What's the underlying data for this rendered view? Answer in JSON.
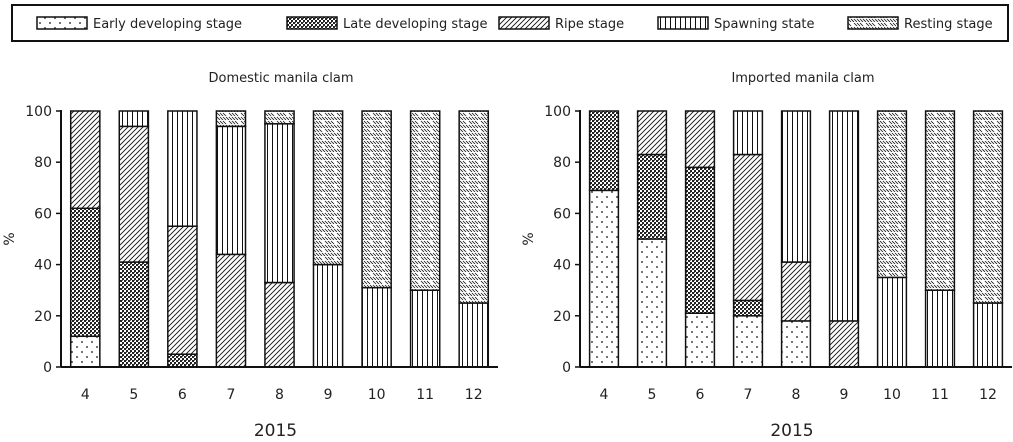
{
  "legend": {
    "items": [
      {
        "label": "Early developing stage",
        "pattern": "dots"
      },
      {
        "label": "Late developing stage",
        "pattern": "crosshatch"
      },
      {
        "label": "Ripe stage",
        "pattern": "diag-right"
      },
      {
        "label": "Spawning state",
        "pattern": "vertical"
      },
      {
        "label": "Resting stage",
        "pattern": "diag-left"
      }
    ]
  },
  "chart_data": [
    {
      "type": "bar",
      "stacked": true,
      "title": "Domestic manila clam",
      "xlabel": "2015",
      "ylabel": "%",
      "ylim": [
        0,
        100
      ],
      "yticks": [
        0,
        20,
        40,
        60,
        80,
        100
      ],
      "categories": [
        "4",
        "5",
        "6",
        "7",
        "8",
        "9",
        "10",
        "11",
        "12"
      ],
      "series": [
        {
          "name": "Early developing stage",
          "values": [
            12,
            0,
            0,
            0,
            0,
            0,
            0,
            0,
            0
          ]
        },
        {
          "name": "Late developing stage",
          "values": [
            50,
            41,
            5,
            0,
            0,
            0,
            0,
            0,
            0
          ]
        },
        {
          "name": "Ripe stage",
          "values": [
            38,
            53,
            50,
            44,
            33,
            0,
            0,
            0,
            0
          ]
        },
        {
          "name": "Spawning state",
          "values": [
            0,
            6,
            45,
            50,
            62,
            40,
            31,
            30,
            25
          ]
        },
        {
          "name": "Resting stage",
          "values": [
            0,
            0,
            0,
            6,
            5,
            60,
            69,
            70,
            75
          ]
        }
      ]
    },
    {
      "type": "bar",
      "stacked": true,
      "title": "Imported manila clam",
      "xlabel": "2015",
      "ylabel": "%",
      "ylim": [
        0,
        100
      ],
      "yticks": [
        0,
        20,
        40,
        60,
        80,
        100
      ],
      "categories": [
        "4",
        "5",
        "6",
        "7",
        "8",
        "9",
        "10",
        "11",
        "12"
      ],
      "series": [
        {
          "name": "Early developing stage",
          "values": [
            69,
            50,
            21,
            20,
            18,
            0,
            0,
            0,
            0
          ]
        },
        {
          "name": "Late developing stage",
          "values": [
            31,
            33,
            57,
            6,
            0,
            0,
            0,
            0,
            0
          ]
        },
        {
          "name": "Ripe stage",
          "values": [
            0,
            17,
            22,
            57,
            23,
            18,
            0,
            0,
            0
          ]
        },
        {
          "name": "Spawning state",
          "values": [
            0,
            0,
            0,
            17,
            59,
            82,
            35,
            30,
            25
          ]
        },
        {
          "name": "Resting stage",
          "values": [
            0,
            0,
            0,
            0,
            0,
            0,
            65,
            70,
            75
          ]
        }
      ]
    }
  ]
}
